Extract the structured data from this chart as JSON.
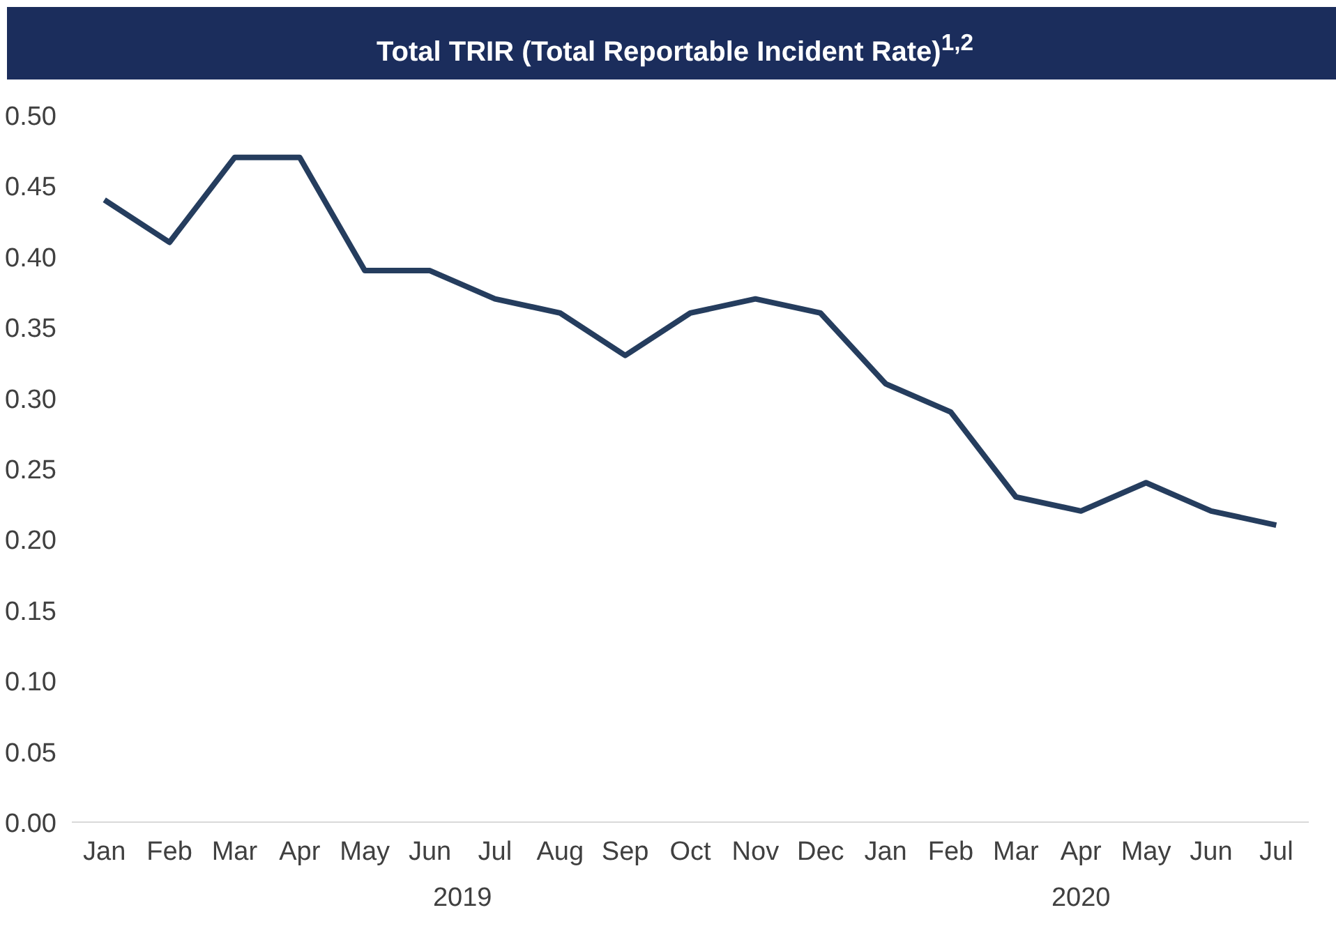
{
  "chart_data": {
    "type": "line",
    "title": "Total TRIR (Total Reportable Incident Rate)$^{1,2}$",
    "categories": [
      "Jan",
      "Feb",
      "Mar",
      "Apr",
      "May",
      "Jun",
      "Jul",
      "Aug",
      "Sep",
      "Oct",
      "Nov",
      "Dec",
      "Jan",
      "Feb",
      "Mar",
      "Apr",
      "May",
      "Jun",
      "Jul"
    ],
    "series": [
      {
        "color": "#253d5e",
        "values": [
          0.44,
          0.41,
          0.47,
          0.47,
          0.39,
          0.39,
          0.37,
          0.36,
          0.33,
          0.36,
          0.37,
          0.36,
          0.31,
          0.29,
          0.23,
          0.22,
          0.24,
          0.22,
          0.21
        ]
      }
    ],
    "annotations": [
      "2019",
      "2020"
    ],
    "ylim": [
      0,
      0.5
    ],
    "yticks": [
      {
        "value": 0,
        "label": "0.00"
      },
      {
        "value": 0.05,
        "label": "0.05"
      },
      {
        "value": 0.1,
        "label": "0.10"
      },
      {
        "value": 0.15,
        "label": "0.15"
      },
      {
        "value": 0.2,
        "label": "0.20"
      },
      {
        "value": 0.25,
        "label": "0.25"
      },
      {
        "value": 0.3,
        "label": "0.30"
      },
      {
        "value": 0.35,
        "label": "0.35"
      },
      {
        "value": 0.4,
        "label": "0.40"
      },
      {
        "value": 0.45,
        "label": "0.45"
      },
      {
        "value": 0.5,
        "label": "0.50"
      }
    ],
    "grid": false,
    "line_style": "solid"
  }
}
